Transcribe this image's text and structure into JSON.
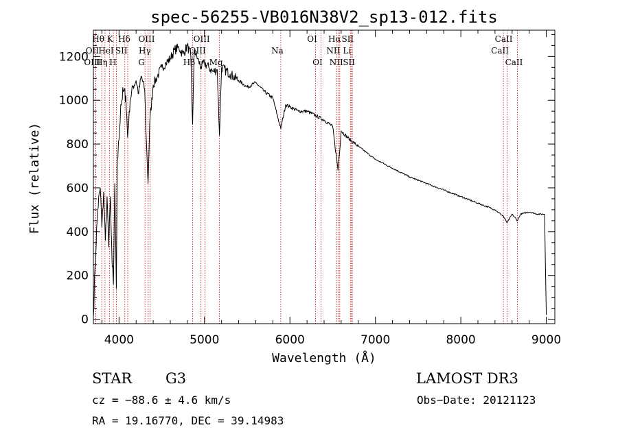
{
  "chart_data": {
    "type": "line",
    "title": "spec-56255-VB016N38V2_sp13-012.fits",
    "xlabel": "Wavelength (Å)",
    "ylabel": "Flux (relative)",
    "xlim": [
      3700,
      9100
    ],
    "ylim": [
      -20,
      1320
    ],
    "xticks": [
      4000,
      5000,
      6000,
      7000,
      8000,
      9000
    ],
    "yticks": [
      0,
      200,
      400,
      600,
      800,
      1000,
      1200
    ],
    "grid": false,
    "series": [
      {
        "name": "spectrum",
        "x": [
          3700,
          3720,
          3750,
          3780,
          3800,
          3820,
          3840,
          3860,
          3880,
          3900,
          3920,
          3935,
          3950,
          3968,
          3980,
          4000,
          4020,
          4050,
          4080,
          4101,
          4130,
          4160,
          4200,
          4230,
          4260,
          4300,
          4320,
          4340,
          4360,
          4400,
          4450,
          4500,
          4550,
          4600,
          4650,
          4700,
          4750,
          4800,
          4840,
          4861,
          4880,
          4920,
          4960,
          5000,
          5050,
          5100,
          5150,
          5175,
          5200,
          5300,
          5400,
          5500,
          5600,
          5700,
          5800,
          5893,
          5950,
          6000,
          6100,
          6200,
          6300,
          6400,
          6500,
          6563,
          6600,
          6700,
          6800,
          6900,
          7000,
          7200,
          7400,
          7600,
          7800,
          8000,
          8200,
          8400,
          8498,
          8542,
          8600,
          8662,
          8700,
          8800,
          8900,
          8980,
          9000
        ],
        "y": [
          10,
          250,
          500,
          600,
          420,
          580,
          360,
          560,
          330,
          560,
          240,
          160,
          620,
          140,
          720,
          820,
          980,
          1040,
          1020,
          830,
          1000,
          1060,
          1090,
          1030,
          1110,
          1050,
          810,
          620,
          900,
          1070,
          1110,
          1150,
          1170,
          1190,
          1230,
          1240,
          1210,
          1250,
          1200,
          890,
          1230,
          1190,
          1150,
          1170,
          1150,
          1130,
          1140,
          840,
          1150,
          1120,
          1090,
          1060,
          1080,
          1040,
          1010,
          870,
          980,
          970,
          950,
          950,
          930,
          910,
          880,
          680,
          860,
          820,
          790,
          760,
          730,
          690,
          650,
          620,
          590,
          560,
          530,
          500,
          470,
          440,
          480,
          450,
          480,
          490,
          480,
          480,
          20
        ]
      }
    ],
    "lines": [
      {
        "label": "Hθ",
        "wave": 3798,
        "row": 1
      },
      {
        "label": "OII",
        "wave": 3727,
        "row": 2
      },
      {
        "label": "OIII",
        "wave": 3727,
        "row": 3
      },
      {
        "label": "Hη",
        "wave": 3836,
        "row": 3
      },
      {
        "label": "HeI",
        "wave": 3889,
        "row": 2
      },
      {
        "label": "K",
        "wave": 3934,
        "row": 1
      },
      {
        "label": "H",
        "wave": 3969,
        "row": 3
      },
      {
        "label": "SII",
        "wave": 4068,
        "row": 2
      },
      {
        "label": "Hδ",
        "wave": 4102,
        "row": 1
      },
      {
        "label": "OIII",
        "wave": 4363,
        "row": 1
      },
      {
        "label": "Hγ",
        "wave": 4341,
        "row": 2
      },
      {
        "label": "G",
        "wave": 4304,
        "row": 3
      },
      {
        "label": "Hβ",
        "wave": 4861,
        "row": 3
      },
      {
        "label": "OIII",
        "wave": 5007,
        "row": 1
      },
      {
        "label": "OIII",
        "wave": 4959,
        "row": 2
      },
      {
        "label": "Mg",
        "wave": 5175,
        "row": 3
      },
      {
        "label": "Na",
        "wave": 5893,
        "row": 2
      },
      {
        "label": "OI",
        "wave": 6300,
        "row": 1
      },
      {
        "label": "OI",
        "wave": 6364,
        "row": 3
      },
      {
        "label": "Hα",
        "wave": 6563,
        "row": 1
      },
      {
        "label": "NII",
        "wave": 6548,
        "row": 2
      },
      {
        "label": "NII",
        "wave": 6583,
        "row": 3
      },
      {
        "label": "SII",
        "wave": 6716,
        "row": 1
      },
      {
        "label": "Li",
        "wave": 6708,
        "row": 2
      },
      {
        "label": "SII",
        "wave": 6731,
        "row": 3
      },
      {
        "label": "CaII",
        "wave": 8542,
        "row": 1
      },
      {
        "label": "CaII",
        "wave": 8498,
        "row": 2
      },
      {
        "label": "CaII",
        "wave": 8662,
        "row": 3
      }
    ]
  },
  "info": {
    "object_class": "STAR",
    "subclass": "G3",
    "survey": "LAMOST DR3",
    "cz": "cz = −88.6 ± 4.6 km/s",
    "obs_date": "Obs−Date: 20121123",
    "coords": "RA =  19.16770, DEC =  39.14983"
  },
  "colors": {
    "spectrum": "#000000",
    "line_markers": "#cc0000",
    "axis": "#000000"
  }
}
